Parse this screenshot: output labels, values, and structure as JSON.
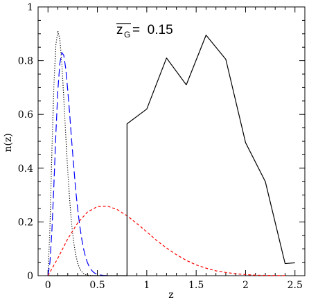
{
  "chart_data": {
    "type": "line",
    "xlabel": "z",
    "ylabel": "n(z)",
    "xlim": [
      -0.1,
      2.6
    ],
    "ylim": [
      0,
      1
    ],
    "x_ticks": [
      0,
      0.5,
      1,
      1.5,
      2,
      2.5
    ],
    "x_tick_labels": [
      "0",
      "0.5",
      "1",
      "1.5",
      "2",
      "2.5"
    ],
    "y_ticks": [
      0,
      0.2,
      0.4,
      0.6,
      0.8,
      1
    ],
    "y_tick_labels": [
      "0",
      "0.2",
      "0.4",
      "0.6",
      "0.8",
      "1"
    ],
    "annotation": {
      "overline_text": "z",
      "subscript": "G",
      "value_text": "=  0.15"
    },
    "grid": false,
    "series": [
      {
        "style": "dotted",
        "color": "#000000",
        "x": [
          0,
          0.02,
          0.04,
          0.06,
          0.08,
          0.1,
          0.12,
          0.14,
          0.16,
          0.18,
          0.2,
          0.22,
          0.24,
          0.26,
          0.28,
          0.3,
          0.32,
          0.34,
          0.36,
          0.38,
          0.4,
          0.42,
          0.44,
          0.46,
          0.48,
          0.5
        ],
        "y": [
          0,
          0.18,
          0.47,
          0.71,
          0.86,
          0.91,
          0.88,
          0.79,
          0.66,
          0.52,
          0.39,
          0.28,
          0.19,
          0.125,
          0.078,
          0.047,
          0.027,
          0.015,
          0.008,
          0.004,
          0.002,
          0.001,
          0.0005,
          0.0002,
          0.0001,
          0
        ]
      },
      {
        "style": "long-dash",
        "color": "#0000ff",
        "x": [
          0,
          0.02,
          0.04,
          0.06,
          0.08,
          0.1,
          0.12,
          0.14,
          0.16,
          0.18,
          0.2,
          0.22,
          0.24,
          0.26,
          0.28,
          0.3,
          0.32,
          0.34,
          0.36,
          0.38,
          0.4,
          0.42,
          0.44,
          0.46,
          0.48,
          0.5,
          0.52,
          0.54,
          0.56,
          0.58,
          0.6,
          0.62,
          0.64
        ],
        "y": [
          0,
          0.05,
          0.17,
          0.34,
          0.53,
          0.69,
          0.79,
          0.83,
          0.82,
          0.77,
          0.69,
          0.6,
          0.5,
          0.41,
          0.32,
          0.25,
          0.19,
          0.14,
          0.1,
          0.07,
          0.048,
          0.032,
          0.021,
          0.013,
          0.008,
          0.005,
          0.003,
          0.002,
          0.001,
          0.0006,
          0.0003,
          0.0001,
          0
        ]
      },
      {
        "style": "short-dash",
        "color": "#ff0000",
        "x": [
          0,
          0.1,
          0.2,
          0.3,
          0.4,
          0.5,
          0.6,
          0.7,
          0.8,
          0.9,
          1.0,
          1.1,
          1.2,
          1.3,
          1.4,
          1.5,
          1.6,
          1.7,
          1.8,
          1.9,
          2.0,
          2.1,
          2.2,
          2.3,
          2.4
        ],
        "y": [
          0,
          0.065,
          0.137,
          0.196,
          0.237,
          0.257,
          0.259,
          0.246,
          0.223,
          0.194,
          0.163,
          0.131,
          0.103,
          0.078,
          0.057,
          0.04,
          0.028,
          0.018,
          0.012,
          0.007,
          0.004,
          0.002,
          0.001,
          0.0006,
          0.0003
        ]
      },
      {
        "style": "solid",
        "color": "#000000",
        "x": [
          0,
          0.8,
          0.8,
          1.0,
          1.2,
          1.4,
          1.6,
          1.8,
          2.0,
          2.2,
          2.4,
          2.5
        ],
        "y": [
          0,
          0,
          0.565,
          0.62,
          0.81,
          0.71,
          0.895,
          0.805,
          0.495,
          0.35,
          0.045,
          0.048
        ]
      }
    ]
  }
}
